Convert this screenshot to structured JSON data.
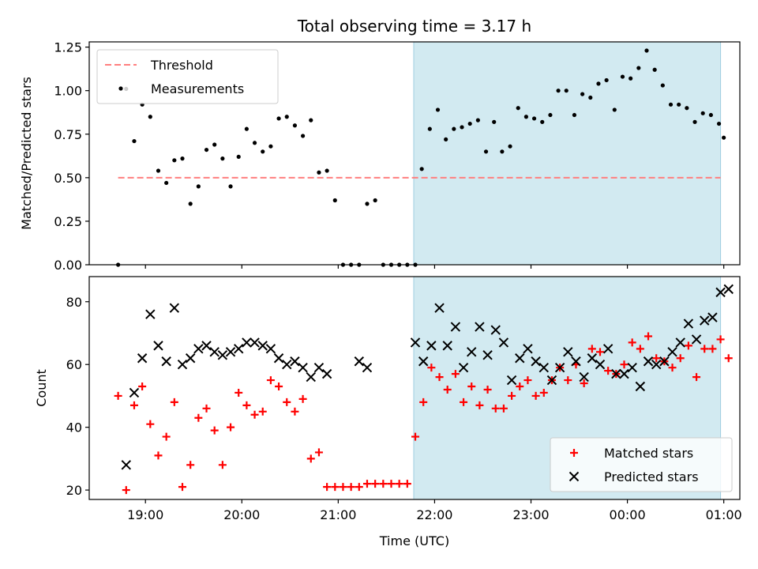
{
  "title": "Total observing time = 3.17 h",
  "colors": {
    "threshold": "#ff7f7f",
    "measurements": "#000000",
    "matched": "#ff0000",
    "predicted": "#000000",
    "span": "#add8e6"
  },
  "chart_data": [
    {
      "type": "scatter",
      "panel": "top",
      "ylabel": "Matched/Predicted stars",
      "ylim": [
        0,
        1.28
      ],
      "yticks": [
        "0.00",
        "0.25",
        "0.50",
        "0.75",
        "1.00",
        "1.25"
      ],
      "xlim": [
        "18:25",
        "01:10"
      ],
      "xticks": [
        "19:00",
        "20:00",
        "21:00",
        "22:00",
        "23:00",
        "00:00",
        "01:00"
      ],
      "highlight_span": [
        "21:47",
        "00:58"
      ],
      "threshold": {
        "y": 0.5,
        "x_range": [
          "18:43",
          "00:58"
        ]
      },
      "legend": {
        "position": "top-left",
        "entries": [
          "Threshold",
          "Measurements"
        ]
      },
      "series": [
        {
          "name": "Measurements",
          "marker": "dot",
          "points": [
            [
              "18:43",
              0.0
            ],
            [
              "18:48",
              1.01
            ],
            [
              "18:53",
              0.71
            ],
            [
              "18:58",
              0.92
            ],
            [
              "19:03",
              0.85
            ],
            [
              "19:08",
              0.54
            ],
            [
              "19:13",
              0.47
            ],
            [
              "19:18",
              0.6
            ],
            [
              "19:23",
              0.61
            ],
            [
              "19:28",
              0.35
            ],
            [
              "19:33",
              0.45
            ],
            [
              "19:38",
              0.66
            ],
            [
              "19:43",
              0.69
            ],
            [
              "19:48",
              0.61
            ],
            [
              "19:53",
              0.45
            ],
            [
              "19:58",
              0.62
            ],
            [
              "20:03",
              0.78
            ],
            [
              "20:08",
              0.7
            ],
            [
              "20:13",
              0.65
            ],
            [
              "20:18",
              0.68
            ],
            [
              "20:23",
              0.84
            ],
            [
              "20:28",
              0.85
            ],
            [
              "20:33",
              0.8
            ],
            [
              "20:38",
              0.74
            ],
            [
              "20:43",
              0.83
            ],
            [
              "20:48",
              0.53
            ],
            [
              "20:53",
              0.54
            ],
            [
              "20:58",
              0.37
            ],
            [
              "21:03",
              0.0
            ],
            [
              "21:08",
              0.0
            ],
            [
              "21:13",
              0.0
            ],
            [
              "21:18",
              0.35
            ],
            [
              "21:23",
              0.37
            ],
            [
              "21:28",
              0.0
            ],
            [
              "21:33",
              0.0
            ],
            [
              "21:38",
              0.0
            ],
            [
              "21:43",
              0.0
            ],
            [
              "21:48",
              0.0
            ],
            [
              "21:52",
              0.55
            ],
            [
              "21:57",
              0.78
            ],
            [
              "22:02",
              0.89
            ],
            [
              "22:07",
              0.72
            ],
            [
              "22:12",
              0.78
            ],
            [
              "22:17",
              0.79
            ],
            [
              "22:22",
              0.81
            ],
            [
              "22:27",
              0.83
            ],
            [
              "22:32",
              0.65
            ],
            [
              "22:37",
              0.82
            ],
            [
              "22:42",
              0.65
            ],
            [
              "22:47",
              0.68
            ],
            [
              "22:52",
              0.9
            ],
            [
              "22:57",
              0.85
            ],
            [
              "23:02",
              0.84
            ],
            [
              "23:07",
              0.82
            ],
            [
              "23:12",
              0.86
            ],
            [
              "23:17",
              1.0
            ],
            [
              "23:22",
              1.0
            ],
            [
              "23:27",
              0.86
            ],
            [
              "23:32",
              0.98
            ],
            [
              "23:37",
              0.96
            ],
            [
              "23:42",
              1.04
            ],
            [
              "23:47",
              1.06
            ],
            [
              "23:52",
              0.89
            ],
            [
              "23:57",
              1.08
            ],
            [
              "00:02",
              1.07
            ],
            [
              "00:07",
              1.13
            ],
            [
              "00:12",
              1.23
            ],
            [
              "00:17",
              1.12
            ],
            [
              "00:22",
              1.03
            ],
            [
              "00:27",
              0.92
            ],
            [
              "00:32",
              0.92
            ],
            [
              "00:37",
              0.9
            ],
            [
              "00:42",
              0.82
            ],
            [
              "00:47",
              0.87
            ],
            [
              "00:52",
              0.86
            ],
            [
              "00:57",
              0.81
            ],
            [
              "01:00",
              0.73
            ]
          ]
        }
      ]
    },
    {
      "type": "scatter",
      "panel": "bottom",
      "xlabel": "Time (UTC)",
      "ylabel": "Count",
      "ylim": [
        17,
        88
      ],
      "yticks": [
        "20",
        "40",
        "60",
        "80"
      ],
      "xlim": [
        "18:25",
        "01:10"
      ],
      "xticks": [
        "19:00",
        "20:00",
        "21:00",
        "22:00",
        "23:00",
        "00:00",
        "01:00"
      ],
      "highlight_span": [
        "21:47",
        "00:58"
      ],
      "legend": {
        "position": "bottom-right",
        "entries": [
          "Matched stars",
          "Predicted stars"
        ]
      },
      "series": [
        {
          "name": "Matched stars",
          "marker": "plus",
          "points": [
            [
              "18:43",
              50
            ],
            [
              "18:48",
              20
            ],
            [
              "18:53",
              47
            ],
            [
              "18:58",
              53
            ],
            [
              "19:03",
              41
            ],
            [
              "19:08",
              31
            ],
            [
              "19:13",
              37
            ],
            [
              "19:18",
              48
            ],
            [
              "19:23",
              21
            ],
            [
              "19:28",
              28
            ],
            [
              "19:33",
              43
            ],
            [
              "19:38",
              46
            ],
            [
              "19:43",
              39
            ],
            [
              "19:48",
              28
            ],
            [
              "19:53",
              40
            ],
            [
              "19:58",
              51
            ],
            [
              "20:03",
              47
            ],
            [
              "20:08",
              44
            ],
            [
              "20:13",
              45
            ],
            [
              "20:18",
              55
            ],
            [
              "20:23",
              53
            ],
            [
              "20:28",
              48
            ],
            [
              "20:33",
              45
            ],
            [
              "20:38",
              49
            ],
            [
              "20:43",
              30
            ],
            [
              "20:48",
              32
            ],
            [
              "20:53",
              21
            ],
            [
              "20:58",
              21
            ],
            [
              "21:03",
              21
            ],
            [
              "21:08",
              21
            ],
            [
              "21:13",
              21
            ],
            [
              "21:18",
              22
            ],
            [
              "21:23",
              22
            ],
            [
              "21:28",
              22
            ],
            [
              "21:33",
              22
            ],
            [
              "21:38",
              22
            ],
            [
              "21:43",
              22
            ],
            [
              "21:48",
              37
            ],
            [
              "21:53",
              48
            ],
            [
              "21:58",
              59
            ],
            [
              "22:03",
              56
            ],
            [
              "22:08",
              52
            ],
            [
              "22:13",
              57
            ],
            [
              "22:18",
              48
            ],
            [
              "22:23",
              53
            ],
            [
              "22:28",
              47
            ],
            [
              "22:33",
              52
            ],
            [
              "22:38",
              46
            ],
            [
              "22:43",
              46
            ],
            [
              "22:48",
              50
            ],
            [
              "22:53",
              53
            ],
            [
              "22:58",
              55
            ],
            [
              "23:03",
              50
            ],
            [
              "23:08",
              51
            ],
            [
              "23:13",
              55
            ],
            [
              "23:18",
              59
            ],
            [
              "23:23",
              55
            ],
            [
              "23:28",
              60
            ],
            [
              "23:33",
              54
            ],
            [
              "23:38",
              65
            ],
            [
              "23:43",
              64
            ],
            [
              "23:48",
              58
            ],
            [
              "23:53",
              57
            ],
            [
              "23:58",
              60
            ],
            [
              "00:03",
              67
            ],
            [
              "00:08",
              65
            ],
            [
              "00:13",
              69
            ],
            [
              "00:18",
              62
            ],
            [
              "00:23",
              61
            ],
            [
              "00:28",
              59
            ],
            [
              "00:33",
              62
            ],
            [
              "00:38",
              66
            ],
            [
              "00:43",
              56
            ],
            [
              "00:48",
              65
            ],
            [
              "00:53",
              65
            ],
            [
              "00:58",
              68
            ],
            [
              "01:03",
              62
            ]
          ]
        },
        {
          "name": "Predicted stars",
          "marker": "x",
          "points": [
            [
              "18:48",
              28
            ],
            [
              "18:53",
              51
            ],
            [
              "18:58",
              62
            ],
            [
              "19:03",
              76
            ],
            [
              "19:08",
              66
            ],
            [
              "19:13",
              61
            ],
            [
              "19:18",
              78
            ],
            [
              "19:23",
              60
            ],
            [
              "19:28",
              62
            ],
            [
              "19:33",
              65
            ],
            [
              "19:38",
              66
            ],
            [
              "19:43",
              64
            ],
            [
              "19:48",
              63
            ],
            [
              "19:53",
              64
            ],
            [
              "19:58",
              65
            ],
            [
              "20:03",
              67
            ],
            [
              "20:08",
              67
            ],
            [
              "20:13",
              66
            ],
            [
              "20:18",
              65
            ],
            [
              "20:23",
              62
            ],
            [
              "20:28",
              60
            ],
            [
              "20:33",
              61
            ],
            [
              "20:38",
              59
            ],
            [
              "20:43",
              56
            ],
            [
              "20:48",
              59
            ],
            [
              "20:53",
              57
            ],
            [
              "21:13",
              61
            ],
            [
              "21:18",
              59
            ],
            [
              "21:48",
              67
            ],
            [
              "21:53",
              61
            ],
            [
              "21:58",
              66
            ],
            [
              "22:03",
              78
            ],
            [
              "22:08",
              66
            ],
            [
              "22:13",
              72
            ],
            [
              "22:18",
              59
            ],
            [
              "22:23",
              64
            ],
            [
              "22:28",
              72
            ],
            [
              "22:33",
              63
            ],
            [
              "22:38",
              71
            ],
            [
              "22:43",
              67
            ],
            [
              "22:48",
              55
            ],
            [
              "22:53",
              62
            ],
            [
              "22:58",
              65
            ],
            [
              "23:03",
              61
            ],
            [
              "23:08",
              59
            ],
            [
              "23:13",
              55
            ],
            [
              "23:18",
              59
            ],
            [
              "23:23",
              64
            ],
            [
              "23:28",
              61
            ],
            [
              "23:33",
              56
            ],
            [
              "23:38",
              62
            ],
            [
              "23:43",
              60
            ],
            [
              "23:48",
              65
            ],
            [
              "23:53",
              57
            ],
            [
              "23:58",
              57
            ],
            [
              "00:03",
              59
            ],
            [
              "00:08",
              53
            ],
            [
              "00:13",
              61
            ],
            [
              "00:18",
              60
            ],
            [
              "00:23",
              61
            ],
            [
              "00:28",
              64
            ],
            [
              "00:33",
              67
            ],
            [
              "00:38",
              73
            ],
            [
              "00:43",
              68
            ],
            [
              "00:48",
              74
            ],
            [
              "00:53",
              75
            ],
            [
              "00:58",
              83
            ],
            [
              "01:03",
              84
            ]
          ]
        }
      ]
    }
  ]
}
